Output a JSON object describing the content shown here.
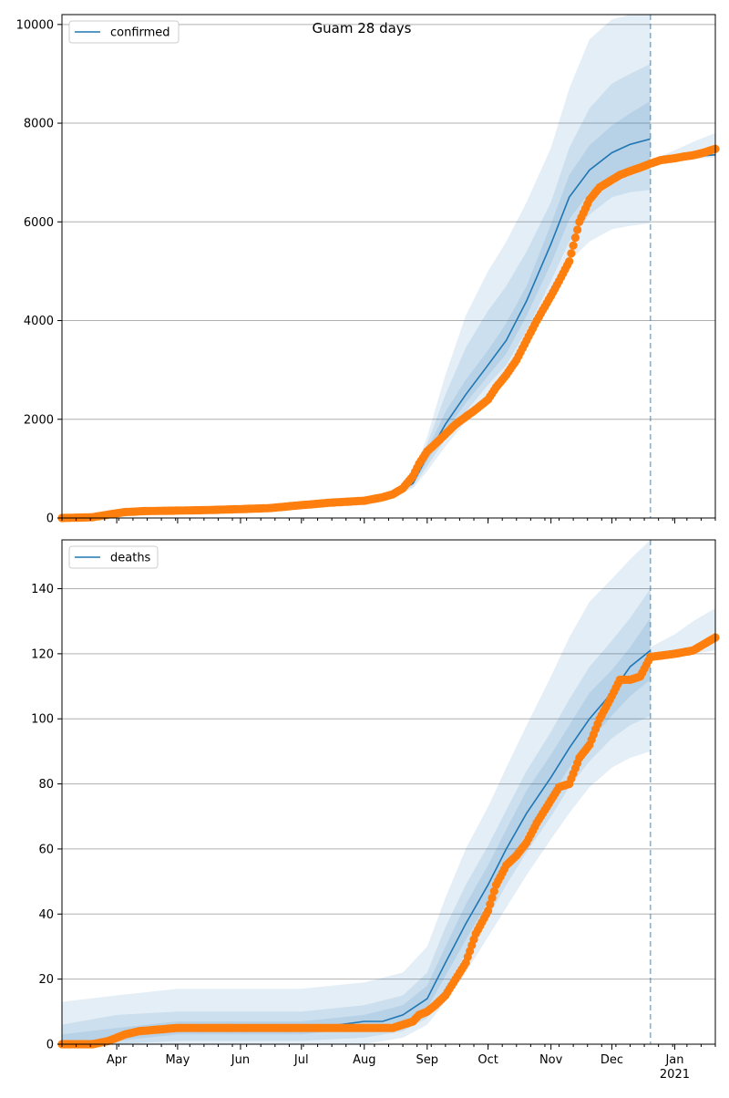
{
  "figure": {
    "title": "Guam 28 days"
  },
  "style": {
    "line_color": "#1f77b4",
    "marker_color": "#ff7f0e",
    "band_color": "#1f77b4",
    "grid_color": "#b0b0b0"
  },
  "x_axis": {
    "start": "2020-03-05",
    "end": "2021-01-21",
    "month_ticks": [
      {
        "date": "2020-04-01",
        "label": "Apr"
      },
      {
        "date": "2020-05-01",
        "label": "May"
      },
      {
        "date": "2020-06-01",
        "label": "Jun"
      },
      {
        "date": "2020-07-01",
        "label": "Jul"
      },
      {
        "date": "2020-08-01",
        "label": "Aug"
      },
      {
        "date": "2020-09-01",
        "label": "Sep"
      },
      {
        "date": "2020-10-01",
        "label": "Oct"
      },
      {
        "date": "2020-11-01",
        "label": "Nov"
      },
      {
        "date": "2020-12-01",
        "label": "Dec"
      },
      {
        "date": "2021-01-01",
        "label": "Jan",
        "sublabel": "2021"
      }
    ],
    "forecast_start": "2020-12-20"
  },
  "chart_data": [
    {
      "type": "line",
      "series_name": "confirmed",
      "legend": "confirmed",
      "ylim": [
        0,
        10200
      ],
      "yticks": [
        0,
        2000,
        4000,
        6000,
        8000,
        10000
      ],
      "grid": "y",
      "legend_position": "top-left",
      "fit_line": {
        "x": [
          "2020-03-05",
          "2020-03-20",
          "2020-04-01",
          "2020-05-01",
          "2020-06-01",
          "2020-07-01",
          "2020-08-01",
          "2020-08-15",
          "2020-08-25",
          "2020-09-01",
          "2020-09-10",
          "2020-09-20",
          "2020-10-01",
          "2020-10-10",
          "2020-10-20",
          "2020-11-01",
          "2020-11-10",
          "2020-11-20",
          "2020-12-01",
          "2020-12-10",
          "2020-12-20"
        ],
        "y": [
          0,
          10,
          100,
          150,
          180,
          260,
          370,
          470,
          700,
          1250,
          1900,
          2500,
          3100,
          3600,
          4400,
          5550,
          6500,
          7050,
          7400,
          7570,
          7680
        ]
      },
      "bands": [
        {
          "level": "outer",
          "x": [
            "2020-08-15",
            "2020-08-25",
            "2020-09-01",
            "2020-09-10",
            "2020-09-20",
            "2020-10-01",
            "2020-10-10",
            "2020-10-20",
            "2020-11-01",
            "2020-11-10",
            "2020-11-20",
            "2020-12-01",
            "2020-12-10",
            "2020-12-20"
          ],
          "lower": [
            430,
            600,
            950,
            1450,
            1950,
            2450,
            2850,
            3500,
            4450,
            5200,
            5600,
            5850,
            5920,
            5970
          ],
          "upper": [
            520,
            850,
            1650,
            2900,
            4100,
            5000,
            5600,
            6400,
            7500,
            8700,
            9700,
            10100,
            10200,
            10200
          ]
        },
        {
          "level": "middle",
          "x": [
            "2020-08-15",
            "2020-08-25",
            "2020-09-01",
            "2020-09-10",
            "2020-09-20",
            "2020-10-01",
            "2020-10-10",
            "2020-10-20",
            "2020-11-01",
            "2020-11-10",
            "2020-11-20",
            "2020-12-01",
            "2020-12-10",
            "2020-12-20"
          ],
          "lower": [
            440,
            640,
            1050,
            1600,
            2150,
            2700,
            3100,
            3800,
            4800,
            5600,
            6150,
            6500,
            6600,
            6650
          ],
          "upper": [
            505,
            790,
            1500,
            2500,
            3450,
            4200,
            4700,
            5400,
            6400,
            7500,
            8300,
            8800,
            9000,
            9200
          ]
        },
        {
          "level": "inner",
          "x": [
            "2020-08-15",
            "2020-08-25",
            "2020-09-01",
            "2020-09-10",
            "2020-09-20",
            "2020-10-01",
            "2020-10-10",
            "2020-10-20",
            "2020-11-01",
            "2020-11-10",
            "2020-11-20",
            "2020-12-01",
            "2020-12-10",
            "2020-12-20"
          ],
          "lower": [
            455,
            680,
            1150,
            1750,
            2330,
            2880,
            3330,
            4100,
            5150,
            6050,
            6600,
            6950,
            7100,
            7150
          ],
          "upper": [
            490,
            740,
            1380,
            2150,
            2800,
            3400,
            3950,
            4700,
            5950,
            6950,
            7550,
            7950,
            8200,
            8450
          ]
        },
        {
          "level": "forecast",
          "x": [
            "2020-12-20",
            "2021-01-01",
            "2021-01-10",
            "2021-01-21"
          ],
          "lower": [
            7150,
            7220,
            7270,
            7310
          ],
          "upper": [
            7250,
            7450,
            7620,
            7800
          ]
        }
      ],
      "forecast_line": {
        "x": [
          "2020-12-20",
          "2021-01-01",
          "2021-01-10",
          "2021-01-21"
        ],
        "y": [
          7200,
          7270,
          7320,
          7360
        ]
      },
      "observed": {
        "x": [
          "2020-03-05",
          "2020-03-20",
          "2020-03-28",
          "2020-04-05",
          "2020-04-15",
          "2020-05-01",
          "2020-05-15",
          "2020-06-01",
          "2020-06-15",
          "2020-07-01",
          "2020-07-15",
          "2020-08-01",
          "2020-08-10",
          "2020-08-15",
          "2020-08-20",
          "2020-08-25",
          "2020-08-28",
          "2020-09-01",
          "2020-09-05",
          "2020-09-10",
          "2020-09-15",
          "2020-09-20",
          "2020-09-25",
          "2020-10-01",
          "2020-10-05",
          "2020-10-10",
          "2020-10-15",
          "2020-10-20",
          "2020-10-25",
          "2020-11-01",
          "2020-11-05",
          "2020-11-10",
          "2020-11-15",
          "2020-11-20",
          "2020-11-25",
          "2020-12-01",
          "2020-12-05",
          "2020-12-10",
          "2020-12-15",
          "2020-12-20",
          "2020-12-25",
          "2021-01-01",
          "2021-01-05",
          "2021-01-10",
          "2021-01-15",
          "2021-01-21"
        ],
        "y": [
          0,
          15,
          70,
          120,
          140,
          150,
          160,
          180,
          200,
          260,
          310,
          350,
          420,
          480,
          600,
          850,
          1100,
          1350,
          1500,
          1700,
          1900,
          2050,
          2200,
          2400,
          2650,
          2900,
          3200,
          3600,
          4000,
          4500,
          4800,
          5200,
          6000,
          6450,
          6700,
          6850,
          6950,
          7030,
          7100,
          7180,
          7250,
          7290,
          7320,
          7350,
          7400,
          7480
        ]
      }
    },
    {
      "type": "line",
      "series_name": "deaths",
      "legend": "deaths",
      "ylim": [
        0,
        155
      ],
      "yticks": [
        0,
        20,
        40,
        60,
        80,
        100,
        120,
        140
      ],
      "grid": "y",
      "legend_position": "top-left",
      "fit_line": {
        "x": [
          "2020-03-05",
          "2020-03-25",
          "2020-04-01",
          "2020-04-20",
          "2020-05-01",
          "2020-06-01",
          "2020-07-01",
          "2020-07-20",
          "2020-08-01",
          "2020-08-10",
          "2020-08-20",
          "2020-09-01",
          "2020-09-10",
          "2020-09-20",
          "2020-10-01",
          "2020-10-10",
          "2020-10-20",
          "2020-11-01",
          "2020-11-10",
          "2020-11-20",
          "2020-12-01",
          "2020-12-10",
          "2020-12-20"
        ],
        "y": [
          0,
          1,
          2,
          4,
          5,
          5,
          5,
          6,
          7,
          7,
          9,
          14,
          25,
          37,
          49,
          60,
          71,
          82,
          91,
          100,
          108,
          116,
          121
        ]
      },
      "bands": [
        {
          "level": "outer",
          "x": [
            "2020-03-05",
            "2020-04-01",
            "2020-05-01",
            "2020-06-01",
            "2020-07-01",
            "2020-08-01",
            "2020-08-20",
            "2020-09-01",
            "2020-09-10",
            "2020-09-20",
            "2020-10-01",
            "2020-10-10",
            "2020-10-20",
            "2020-11-01",
            "2020-11-10",
            "2020-11-20",
            "2020-12-01",
            "2020-12-10",
            "2020-12-20"
          ],
          "lower": [
            0,
            0,
            0,
            0,
            0,
            0,
            2,
            6,
            13,
            22,
            33,
            42,
            52,
            63,
            71,
            79,
            85,
            88,
            90
          ],
          "upper": [
            13,
            15,
            17,
            17,
            17,
            19,
            22,
            30,
            45,
            60,
            73,
            85,
            98,
            113,
            125,
            136,
            143,
            149,
            155
          ]
        },
        {
          "level": "middle",
          "x": [
            "2020-03-05",
            "2020-04-01",
            "2020-05-01",
            "2020-06-01",
            "2020-07-01",
            "2020-08-01",
            "2020-08-20",
            "2020-09-01",
            "2020-09-10",
            "2020-09-20",
            "2020-10-01",
            "2020-10-10",
            "2020-10-20",
            "2020-11-01",
            "2020-11-10",
            "2020-11-20",
            "2020-12-01",
            "2020-12-10",
            "2020-12-20"
          ],
          "lower": [
            0,
            0,
            1,
            1,
            1,
            2,
            4,
            8,
            17,
            28,
            39,
            49,
            59,
            70,
            79,
            87,
            94,
            98,
            101
          ],
          "upper": [
            6,
            9,
            10,
            10,
            10,
            12,
            15,
            22,
            36,
            49,
            61,
            72,
            84,
            96,
            106,
            116,
            124,
            131,
            140
          ]
        },
        {
          "level": "inner",
          "x": [
            "2020-03-05",
            "2020-04-01",
            "2020-05-01",
            "2020-06-01",
            "2020-07-01",
            "2020-08-01",
            "2020-08-20",
            "2020-09-01",
            "2020-09-10",
            "2020-09-20",
            "2020-10-01",
            "2020-10-10",
            "2020-10-20",
            "2020-11-01",
            "2020-11-10",
            "2020-11-20",
            "2020-12-01",
            "2020-12-10",
            "2020-12-20"
          ],
          "lower": [
            0,
            1,
            3,
            3,
            3,
            5,
            7,
            11,
            21,
            32,
            44,
            54,
            65,
            76,
            85,
            93,
            101,
            107,
            112
          ],
          "upper": [
            3,
            5,
            7,
            7,
            7,
            9,
            12,
            18,
            30,
            43,
            55,
            66,
            78,
            89,
            98,
            108,
            115,
            122,
            131
          ]
        },
        {
          "level": "forecast",
          "x": [
            "2020-12-20",
            "2021-01-01",
            "2021-01-10",
            "2021-01-21"
          ],
          "lower": [
            118,
            119,
            120,
            121
          ],
          "upper": [
            122,
            126,
            130,
            134
          ]
        }
      ],
      "forecast_line": {
        "x": [
          "2020-12-20",
          "2021-01-01",
          "2021-01-10",
          "2021-01-21"
        ],
        "y": [
          120,
          121,
          122,
          124
        ]
      },
      "observed": {
        "x": [
          "2020-03-05",
          "2020-03-20",
          "2020-03-28",
          "2020-04-01",
          "2020-04-05",
          "2020-04-12",
          "2020-05-01",
          "2020-06-01",
          "2020-07-01",
          "2020-08-01",
          "2020-08-15",
          "2020-08-20",
          "2020-08-25",
          "2020-08-28",
          "2020-09-01",
          "2020-09-05",
          "2020-09-10",
          "2020-09-15",
          "2020-09-20",
          "2020-09-25",
          "2020-10-01",
          "2020-10-05",
          "2020-10-10",
          "2020-10-15",
          "2020-10-20",
          "2020-10-25",
          "2020-11-01",
          "2020-11-05",
          "2020-11-10",
          "2020-11-15",
          "2020-11-20",
          "2020-11-25",
          "2020-12-01",
          "2020-12-05",
          "2020-12-10",
          "2020-12-15",
          "2020-12-20",
          "2021-01-01",
          "2021-01-10",
          "2021-01-21"
        ],
        "y": [
          0,
          0,
          1,
          2,
          3,
          4,
          5,
          5,
          5,
          5,
          5,
          6,
          7,
          9,
          10,
          12,
          15,
          20,
          25,
          34,
          41,
          49,
          55,
          58,
          62,
          68,
          75,
          79,
          80,
          88,
          92,
          100,
          107,
          112,
          112,
          113,
          119,
          120,
          121,
          125
        ]
      }
    }
  ]
}
